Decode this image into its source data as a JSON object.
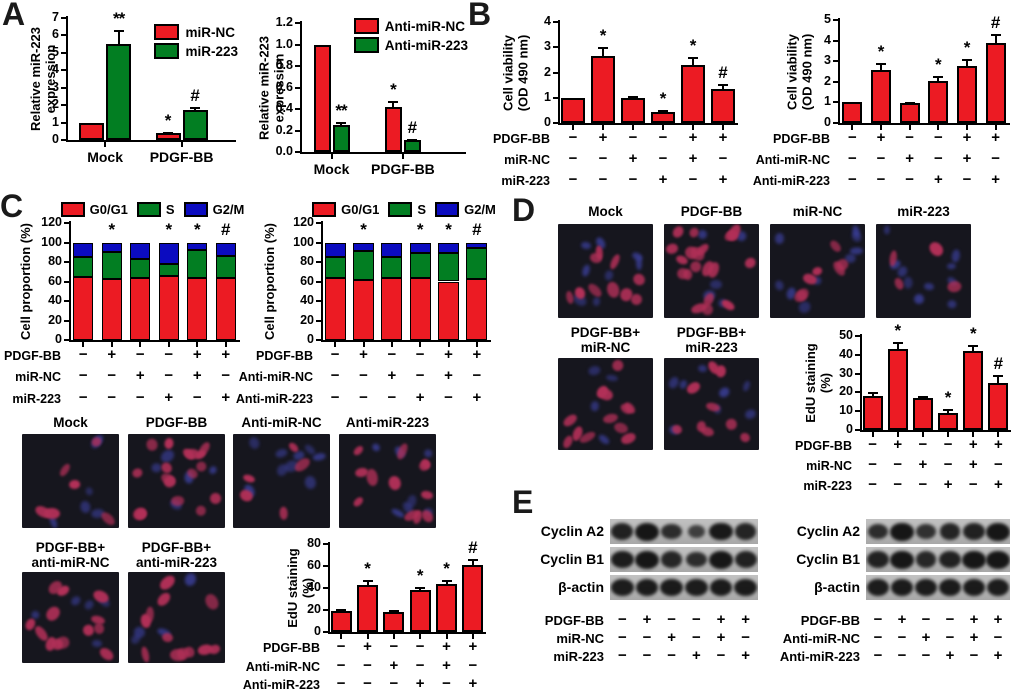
{
  "panel_labels": {
    "a": "A",
    "b": "B",
    "c": "C",
    "d": "D",
    "e": "E"
  },
  "colors": {
    "bar_red": "#EC1B23",
    "bar_green": "#027E22",
    "bar_blue": "#0B0BC0",
    "axis_black": "#000000",
    "micro_bg": "#16161e",
    "nucleus_red": "#b23058",
    "nucleus_blue": "#3b3f99",
    "blot_strip": "#b5b5b5",
    "blot_band": "#161616"
  },
  "chart_data": [
    {
      "id": "a_left",
      "name": "mir223-expression-chart",
      "type": "grouped-bar",
      "title": "",
      "ylabel": [
        "Relative miR-223",
        "expression"
      ],
      "categories": [
        "Mock",
        "PDGF-BB"
      ],
      "series": [
        {
          "name": "miR-NC",
          "color": "red",
          "values": [
            1.0,
            0.4
          ],
          "errors": [
            0,
            0.08
          ],
          "annotations": [
            "",
            "*"
          ]
        },
        {
          "name": "miR-223",
          "color": "green",
          "values": [
            5.5,
            1.7
          ],
          "errors": [
            0.8,
            0.2
          ],
          "annotations": [
            "**",
            "#"
          ]
        }
      ],
      "legend": [
        {
          "label": "miR-NC",
          "color": "red"
        },
        {
          "label": "miR-223",
          "color": "green"
        }
      ],
      "ylim": [
        0,
        7
      ],
      "ytick_step": 1,
      "ytick_decimals": 0,
      "grid": false,
      "legend_position": "top-right"
    },
    {
      "id": "a_right",
      "name": "anti-mir223-expression-chart",
      "type": "grouped-bar",
      "title": "",
      "ylabel": [
        "Relative miR-223",
        "expression"
      ],
      "categories": [
        "Mock",
        "PDGF-BB"
      ],
      "series": [
        {
          "name": "Anti-miR-NC",
          "color": "red",
          "values": [
            1.0,
            0.42
          ],
          "errors": [
            0,
            0.05
          ],
          "annotations": [
            "",
            "*"
          ]
        },
        {
          "name": "Anti-miR-223",
          "color": "green",
          "values": [
            0.25,
            0.11
          ],
          "errors": [
            0.03,
            0.015
          ],
          "annotations": [
            "**",
            "#"
          ]
        }
      ],
      "legend": [
        {
          "label": "Anti-miR-NC",
          "color": "red"
        },
        {
          "label": "Anti-miR-223",
          "color": "green"
        }
      ],
      "ylim": [
        0,
        1.2
      ],
      "ytick_step": 0.2,
      "ytick_decimals": 1,
      "grid": false,
      "legend_position": "top-right"
    },
    {
      "id": "b_left",
      "name": "cell-viability-mir223-chart",
      "type": "bar",
      "ylabel": [
        "Cell viability",
        "(OD 490 nm)"
      ],
      "values": [
        1.0,
        2.65,
        1.0,
        0.42,
        2.3,
        1.35
      ],
      "errors": [
        0,
        0.35,
        0.07,
        0.08,
        0.3,
        0.2
      ],
      "annotations": [
        "",
        "*",
        "",
        "*",
        "*",
        "#"
      ],
      "ylim": [
        0,
        4
      ],
      "ytick_step": 1,
      "ytick_decimals": 0,
      "grid": false,
      "matrix": {
        "rows": [
          {
            "label": "PDGF-BB",
            "signs": [
              "-",
              "+",
              "-",
              "-",
              "+",
              "+"
            ]
          },
          {
            "label": "miR-NC",
            "signs": [
              "-",
              "-",
              "+",
              "-",
              "+",
              "-"
            ]
          },
          {
            "label": "miR-223",
            "signs": [
              "-",
              "-",
              "-",
              "+",
              "-",
              "+"
            ]
          }
        ]
      }
    },
    {
      "id": "b_right",
      "name": "cell-viability-antimir223-chart",
      "type": "bar",
      "ylabel": [
        "Cell viability",
        "(OD 490 nm)"
      ],
      "values": [
        1.0,
        2.55,
        0.95,
        2.05,
        2.75,
        3.9
      ],
      "errors": [
        0,
        0.35,
        0.05,
        0.25,
        0.35,
        0.4
      ],
      "annotations": [
        "",
        "*",
        "",
        "*",
        "*",
        "#"
      ],
      "ylim": [
        0,
        5
      ],
      "ytick_step": 1,
      "ytick_decimals": 0,
      "grid": false,
      "matrix": {
        "rows": [
          {
            "label": "PDGF-BB",
            "signs": [
              "-",
              "+",
              "-",
              "-",
              "+",
              "+"
            ]
          },
          {
            "label": "Anti-miR-NC",
            "signs": [
              "-",
              "-",
              "+",
              "-",
              "+",
              "-"
            ]
          },
          {
            "label": "Anti-miR-223",
            "signs": [
              "-",
              "-",
              "-",
              "+",
              "-",
              "+"
            ]
          }
        ]
      }
    },
    {
      "id": "c_left",
      "name": "cell-cycle-mir223-chart",
      "type": "stacked-bar",
      "ylabel": [
        "Cell proportion (%)"
      ],
      "series": [
        {
          "name": "G0/G1",
          "color": "red",
          "values": [
            65,
            63,
            64,
            66,
            64,
            64
          ]
        },
        {
          "name": "S",
          "color": "green",
          "values": [
            20,
            27,
            19,
            12,
            28,
            22
          ]
        },
        {
          "name": "G2/M",
          "color": "blue",
          "values": [
            15,
            10,
            17,
            22,
            8,
            14
          ]
        }
      ],
      "annotations": [
        "",
        "*",
        "",
        "*",
        "*",
        "#"
      ],
      "legend": [
        {
          "label": "G0/G1",
          "color": "red"
        },
        {
          "label": "S",
          "color": "green"
        },
        {
          "label": "G2/M",
          "color": "blue"
        }
      ],
      "ylim": [
        0,
        120
      ],
      "ytick_step": 20,
      "ytick_decimals": 0,
      "grid": false,
      "legend_position": "top",
      "matrix": {
        "rows": [
          {
            "label": "PDGF-BB",
            "signs": [
              "-",
              "+",
              "-",
              "-",
              "+",
              "+"
            ]
          },
          {
            "label": "miR-NC",
            "signs": [
              "-",
              "-",
              "+",
              "-",
              "+",
              "-"
            ]
          },
          {
            "label": "miR-223",
            "signs": [
              "-",
              "-",
              "-",
              "+",
              "-",
              "+"
            ]
          }
        ]
      }
    },
    {
      "id": "c_right",
      "name": "cell-cycle-antimir223-chart",
      "type": "stacked-bar",
      "ylabel": [
        "Cell proportion (%)"
      ],
      "series": [
        {
          "name": "G0/G1",
          "color": "red",
          "values": [
            64,
            62,
            64,
            64,
            60,
            63
          ]
        },
        {
          "name": "S",
          "color": "green",
          "values": [
            21,
            29,
            21,
            25,
            29,
            31
          ]
        },
        {
          "name": "G2/M",
          "color": "blue",
          "values": [
            15,
            9,
            15,
            11,
            11,
            6
          ]
        }
      ],
      "annotations": [
        "",
        "*",
        "",
        "*",
        "*",
        "#"
      ],
      "legend": [
        {
          "label": "G0/G1",
          "color": "red"
        },
        {
          "label": "S",
          "color": "green"
        },
        {
          "label": "G2/M",
          "color": "blue"
        }
      ],
      "ylim": [
        0,
        120
      ],
      "ytick_step": 20,
      "ytick_decimals": 0,
      "grid": false,
      "legend_position": "top",
      "matrix": {
        "rows": [
          {
            "label": "PDGF-BB",
            "signs": [
              "-",
              "+",
              "-",
              "-",
              "+",
              "+"
            ]
          },
          {
            "label": "Anti-miR-NC",
            "signs": [
              "-",
              "-",
              "+",
              "-",
              "+",
              "-"
            ]
          },
          {
            "label": "Anti-miR-223",
            "signs": [
              "-",
              "-",
              "-",
              "+",
              "-",
              "+"
            ]
          }
        ]
      }
    },
    {
      "id": "c_edu",
      "name": "edu-staining-antimir223-chart",
      "type": "bar",
      "ylabel": [
        "EdU staining",
        "(%)"
      ],
      "values": [
        19,
        43,
        18,
        38,
        44,
        61
      ],
      "errors": [
        2,
        4,
        2,
        3,
        3,
        5
      ],
      "annotations": [
        "",
        "*",
        "",
        "*",
        "*",
        "#"
      ],
      "ylim": [
        0,
        80
      ],
      "ytick_step": 20,
      "ytick_decimals": 0,
      "grid": false,
      "matrix": {
        "rows": [
          {
            "label": "PDGF-BB",
            "signs": [
              "-",
              "+",
              "-",
              "-",
              "+",
              "+"
            ]
          },
          {
            "label": "Anti-miR-NC",
            "signs": [
              "-",
              "-",
              "+",
              "-",
              "+",
              "-"
            ]
          },
          {
            "label": "Anti-miR-223",
            "signs": [
              "-",
              "-",
              "-",
              "+",
              "-",
              "+"
            ]
          }
        ]
      }
    },
    {
      "id": "d_edu",
      "name": "edu-staining-mir223-chart",
      "type": "bar",
      "ylabel": [
        "EdU staining",
        "(%)"
      ],
      "values": [
        18,
        43,
        17,
        9,
        42,
        25
      ],
      "errors": [
        2,
        4,
        1,
        2,
        3,
        4
      ],
      "annotations": [
        "",
        "*",
        "",
        "*",
        "*",
        "#"
      ],
      "ylim": [
        0,
        50
      ],
      "ytick_step": 10,
      "ytick_decimals": 0,
      "grid": false,
      "matrix": {
        "rows": [
          {
            "label": "PDGF-BB",
            "signs": [
              "-",
              "+",
              "-",
              "-",
              "+",
              "+"
            ]
          },
          {
            "label": "miR-NC",
            "signs": [
              "-",
              "-",
              "+",
              "-",
              "+",
              "-"
            ]
          },
          {
            "label": "miR-223",
            "signs": [
              "-",
              "-",
              "-",
              "+",
              "-",
              "+"
            ]
          }
        ]
      }
    }
  ],
  "microscopy": {
    "c_row1": [
      {
        "label": [
          "Mock"
        ],
        "red": 6,
        "blue": 6
      },
      {
        "label": [
          "PDGF-BB"
        ],
        "red": 17,
        "blue": 5
      },
      {
        "label": [
          "Anti-miR-NC"
        ],
        "red": 5,
        "blue": 9
      },
      {
        "label": [
          "Anti-miR-223"
        ],
        "red": 12,
        "blue": 7
      }
    ],
    "c_row2": [
      {
        "label": [
          "PDGF-BB+",
          "anti-miR-NC"
        ],
        "red": 13,
        "blue": 5
      },
      {
        "label": [
          "PDGF-BB+",
          "anti-miR-223"
        ],
        "red": 12,
        "blue": 4
      }
    ],
    "d_row1": [
      {
        "label": [
          "Mock"
        ],
        "red": 10,
        "blue": 8
      },
      {
        "label": [
          "PDGF-BB"
        ],
        "red": 20,
        "blue": 5
      },
      {
        "label": [
          "miR-NC"
        ],
        "red": 7,
        "blue": 9
      },
      {
        "label": [
          "miR-223"
        ],
        "red": 4,
        "blue": 10
      }
    ],
    "d_row2": [
      {
        "label": [
          "PDGF-BB+",
          "miR-NC"
        ],
        "red": 12,
        "blue": 4
      },
      {
        "label": [
          "PDGF-BB+",
          "miR-223"
        ],
        "red": 9,
        "blue": 8
      }
    ]
  },
  "blots": [
    {
      "name": "western-blot-mir223",
      "bands": [
        {
          "label": "Cyclin A2",
          "intensities": [
            0.85,
            1.0,
            0.7,
            0.42,
            0.95,
            0.8
          ]
        },
        {
          "label": "Cyclin B1",
          "intensities": [
            0.9,
            1.0,
            0.78,
            0.7,
            1.0,
            0.85
          ]
        },
        {
          "label": "β-actin",
          "intensities": [
            0.92,
            0.93,
            0.93,
            0.92,
            0.93,
            0.93
          ]
        }
      ],
      "matrix": {
        "rows": [
          {
            "label": "PDGF-BB",
            "signs": [
              "-",
              "+",
              "-",
              "-",
              "+",
              "+"
            ]
          },
          {
            "label": "miR-NC",
            "signs": [
              "-",
              "-",
              "+",
              "-",
              "+",
              "-"
            ]
          },
          {
            "label": "miR-223",
            "signs": [
              "-",
              "-",
              "-",
              "+",
              "-",
              "+"
            ]
          }
        ]
      }
    },
    {
      "name": "western-blot-antimir223",
      "bands": [
        {
          "label": "Cyclin A2",
          "intensities": [
            0.68,
            1.0,
            0.62,
            0.8,
            0.85,
            1.0
          ]
        },
        {
          "label": "Cyclin B1",
          "intensities": [
            0.85,
            1.0,
            0.75,
            0.85,
            1.0,
            1.0
          ]
        },
        {
          "label": "β-actin",
          "intensities": [
            0.92,
            0.93,
            0.92,
            0.93,
            0.93,
            0.92
          ]
        }
      ],
      "matrix": {
        "rows": [
          {
            "label": "PDGF-BB",
            "signs": [
              "-",
              "+",
              "-",
              "-",
              "+",
              "+"
            ]
          },
          {
            "label": "Anti-miR-NC",
            "signs": [
              "-",
              "-",
              "+",
              "-",
              "+",
              "-"
            ]
          },
          {
            "label": "Anti-miR-223",
            "signs": [
              "-",
              "-",
              "-",
              "+",
              "-",
              "+"
            ]
          }
        ]
      }
    }
  ]
}
